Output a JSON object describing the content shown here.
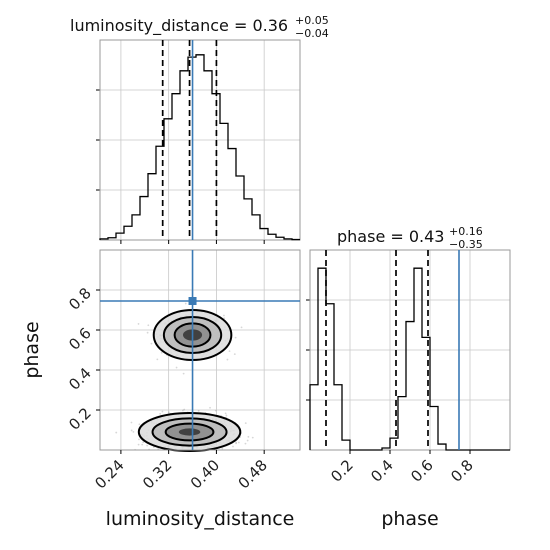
{
  "chart_data": {
    "type": "corner",
    "parameters": [
      "luminosity_distance",
      "phase"
    ],
    "axis_labels": {
      "x_left": "luminosity_distance",
      "x_right": "phase",
      "y_lower": "phase"
    },
    "truths": {
      "luminosity_distance": 0.36,
      "phase": 0.745
    },
    "ranges": {
      "luminosity_distance": [
        0.205,
        0.54
      ],
      "phase": [
        0.0,
        1.0
      ]
    },
    "ticks": {
      "luminosity_distance": [
        0.24,
        0.32,
        0.4,
        0.48
      ],
      "phase": [
        0.2,
        0.4,
        0.6,
        0.8
      ]
    },
    "tick_labels": {
      "luminosity_distance": [
        "0.24",
        "0.32",
        "0.40",
        "0.48"
      ],
      "phase": [
        "0.2",
        "0.4",
        "0.6",
        "0.8"
      ]
    },
    "marginals": [
      {
        "parameter": "luminosity_distance",
        "title_main": "luminosity_distance = 0.36",
        "title_plus": "+0.05",
        "title_minus": "−0.04",
        "quantiles": [
          0.31,
          0.355,
          0.4
        ],
        "bin_edges": [
          0.205,
          0.2184,
          0.2318,
          0.2452,
          0.2586,
          0.272,
          0.2854,
          0.2988,
          0.3122,
          0.3256,
          0.339,
          0.3524,
          0.3658,
          0.3792,
          0.3926,
          0.406,
          0.4194,
          0.4328,
          0.4462,
          0.4596,
          0.473,
          0.4864,
          0.4998,
          0.5132,
          0.5266,
          0.54
        ],
        "counts": [
          0.5,
          1,
          3,
          6,
          11,
          19,
          29,
          41,
          53,
          64,
          74,
          80,
          81,
          74,
          64,
          51,
          40,
          28,
          18,
          11,
          5,
          2.5,
          1.2,
          0.5,
          0.2
        ]
      },
      {
        "parameter": "phase",
        "title_main": "phase = 0.43",
        "title_plus": "+0.16",
        "title_minus": "−0.35",
        "quantiles": [
          0.08,
          0.43,
          0.59
        ],
        "bin_edges": [
          0.0,
          0.04,
          0.08,
          0.12,
          0.16,
          0.2,
          0.24,
          0.28,
          0.32,
          0.36,
          0.4,
          0.44,
          0.48,
          0.52,
          0.56,
          0.6,
          0.64,
          0.68,
          0.72,
          0.76,
          0.8,
          0.84,
          0.88,
          0.92,
          0.96,
          1.0
        ],
        "counts": [
          33,
          92,
          74,
          33,
          5,
          0,
          0,
          0,
          0,
          1,
          6,
          27,
          65,
          92,
          57,
          22,
          3,
          0,
          0,
          0,
          0,
          0,
          0,
          0,
          0
        ]
      }
    ],
    "joint": {
      "x": "luminosity_distance",
      "y": "phase",
      "modes": [
        {
          "x": 0.36,
          "y": 0.575
        },
        {
          "x": 0.355,
          "y": 0.08
        }
      ]
    }
  }
}
